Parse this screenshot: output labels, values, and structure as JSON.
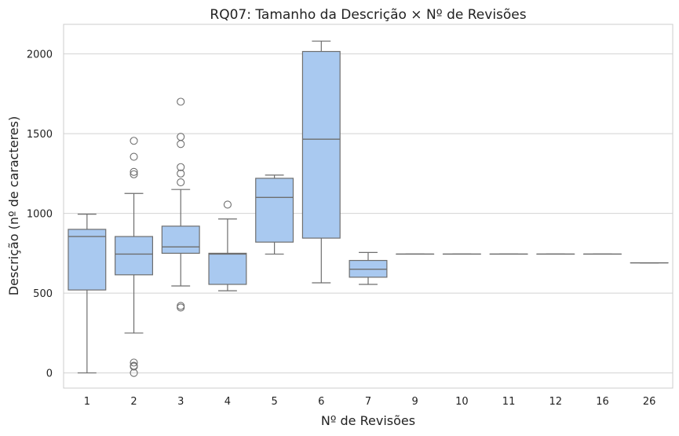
{
  "chart_data": {
    "type": "box",
    "title": "RQ07: Tamanho da Descrição × Nº de Revisões",
    "xlabel": "Nº de Revisões",
    "ylabel": "Descrição (nº de caracteres)",
    "categories": [
      "1",
      "2",
      "3",
      "4",
      "5",
      "6",
      "7",
      "9",
      "10",
      "11",
      "12",
      "16",
      "26"
    ],
    "y_ticks": [
      "0",
      "500",
      "1000",
      "1500",
      "2000"
    ],
    "ylim": [
      -95,
      2185
    ],
    "grid": "horizontal",
    "box_color": "#a9c9f0",
    "line_color": "#6e6e6e",
    "boxes": [
      {
        "category": "1",
        "whisker_low": 0,
        "q1": 520,
        "median": 855,
        "q3": 900,
        "whisker_high": 995,
        "outliers": []
      },
      {
        "category": "2",
        "whisker_low": 250,
        "q1": 615,
        "median": 745,
        "q3": 855,
        "whisker_high": 1125,
        "outliers": [
          0,
          40,
          45,
          65,
          1245,
          1260,
          1355,
          1455
        ]
      },
      {
        "category": "3",
        "whisker_low": 545,
        "q1": 750,
        "median": 790,
        "q3": 920,
        "whisker_high": 1150,
        "outliers": [
          410,
          420,
          1195,
          1250,
          1290,
          1435,
          1480,
          1700
        ]
      },
      {
        "category": "4",
        "whisker_low": 515,
        "q1": 555,
        "median": 745,
        "q3": 750,
        "whisker_high": 965,
        "outliers": [
          1055
        ]
      },
      {
        "category": "5",
        "whisker_low": 745,
        "q1": 820,
        "median": 1100,
        "q3": 1220,
        "whisker_high": 1240,
        "outliers": []
      },
      {
        "category": "6",
        "whisker_low": 565,
        "q1": 845,
        "median": 1465,
        "q3": 2015,
        "whisker_high": 2080,
        "outliers": []
      },
      {
        "category": "7",
        "whisker_low": 555,
        "q1": 600,
        "median": 650,
        "q3": 705,
        "whisker_high": 755,
        "outliers": []
      },
      {
        "category": "9",
        "whisker_low": 745,
        "q1": 745,
        "median": 745,
        "q3": 745,
        "whisker_high": 745,
        "outliers": []
      },
      {
        "category": "10",
        "whisker_low": 745,
        "q1": 745,
        "median": 745,
        "q3": 745,
        "whisker_high": 745,
        "outliers": []
      },
      {
        "category": "11",
        "whisker_low": 745,
        "q1": 745,
        "median": 745,
        "q3": 745,
        "whisker_high": 745,
        "outliers": []
      },
      {
        "category": "12",
        "whisker_low": 745,
        "q1": 745,
        "median": 745,
        "q3": 745,
        "whisker_high": 745,
        "outliers": []
      },
      {
        "category": "16",
        "whisker_low": 745,
        "q1": 745,
        "median": 745,
        "q3": 745,
        "whisker_high": 745,
        "outliers": []
      },
      {
        "category": "26",
        "whisker_low": 690,
        "q1": 690,
        "median": 690,
        "q3": 690,
        "whisker_high": 690,
        "outliers": []
      }
    ]
  }
}
